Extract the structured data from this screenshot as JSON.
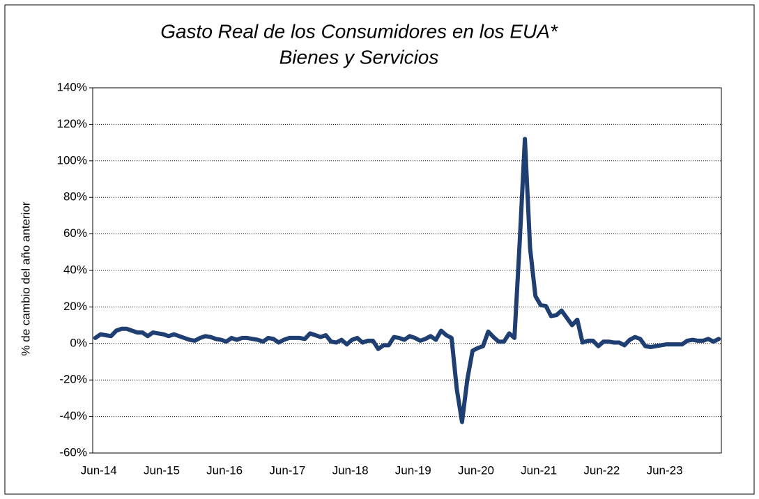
{
  "chart_data": {
    "type": "line",
    "title": "Gasto Real de los Consumidores en los EUA*",
    "subtitle": "Bienes y Servicios",
    "y_label": "% de cambio del año anterior",
    "categories": [
      "Jun-14",
      null,
      null,
      null,
      null,
      null,
      null,
      null,
      null,
      null,
      null,
      null,
      "Jun-15",
      null,
      null,
      null,
      null,
      null,
      null,
      null,
      null,
      null,
      null,
      null,
      "Jun-16",
      null,
      null,
      null,
      null,
      null,
      null,
      null,
      null,
      null,
      null,
      null,
      "Jun-17",
      null,
      null,
      null,
      null,
      null,
      null,
      null,
      null,
      null,
      null,
      null,
      "Jun-18",
      null,
      null,
      null,
      null,
      null,
      null,
      null,
      null,
      null,
      null,
      null,
      "Jun-19",
      null,
      null,
      null,
      null,
      null,
      null,
      null,
      null,
      null,
      null,
      null,
      "Jun-20",
      null,
      null,
      null,
      null,
      null,
      null,
      null,
      null,
      null,
      null,
      null,
      "Jun-21",
      null,
      null,
      null,
      null,
      null,
      null,
      null,
      null,
      null,
      null,
      null,
      "Jun-22",
      null,
      null,
      null,
      null,
      null,
      null,
      null,
      null,
      null,
      null,
      null,
      "Jun-23",
      null,
      null,
      null,
      null,
      null,
      null,
      null,
      null,
      null,
      null,
      null
    ],
    "series": [
      {
        "name": null,
        "color": "#1f3f73",
        "values": [
          3,
          5,
          4.5,
          4,
          7,
          8,
          8,
          7,
          6,
          6,
          4,
          6,
          5.5,
          5,
          4,
          5,
          4,
          3,
          2,
          1.5,
          3,
          4,
          3.5,
          2.5,
          2,
          1,
          3,
          2,
          3,
          3,
          2.5,
          2,
          1,
          3,
          2.5,
          0.5,
          2,
          3,
          3,
          3,
          2.5,
          5.5,
          4.5,
          3.5,
          4.5,
          1,
          0.5,
          2,
          -0.5,
          2,
          3,
          0.5,
          1.5,
          1.5,
          -3,
          -1,
          -1,
          3.5,
          3,
          2,
          4,
          3,
          1.5,
          2.5,
          4,
          2,
          7,
          4.5,
          3,
          -25,
          -43,
          -20,
          -4,
          -2.5,
          -1.5,
          6.5,
          3.5,
          1,
          1,
          5.5,
          3,
          55,
          112,
          52,
          26,
          21,
          20.5,
          15,
          15.5,
          18,
          14,
          10,
          13,
          0.5,
          1.5,
          1.5,
          -1.5,
          1,
          1,
          0.5,
          0.5,
          -1,
          2,
          3.5,
          2.5,
          -1.5,
          -2,
          -1.5,
          -1,
          -0.5,
          -0.5,
          -0.5,
          -0.5,
          1.5,
          2,
          1.5,
          1.5,
          2.5,
          1,
          2.5
        ]
      }
    ],
    "ylim": [
      -60,
      140
    ],
    "yticks": [
      {
        "value": -60,
        "label": "-60%"
      },
      {
        "value": -40,
        "label": "-40%"
      },
      {
        "value": -20,
        "label": "-20%"
      },
      {
        "value": 0,
        "label": "0%"
      },
      {
        "value": 20,
        "label": "20%"
      },
      {
        "value": 40,
        "label": "40%"
      },
      {
        "value": 60,
        "label": "60%"
      },
      {
        "value": 80,
        "label": "80%"
      },
      {
        "value": 100,
        "label": "100%"
      },
      {
        "value": 120,
        "label": "120%"
      },
      {
        "value": 140,
        "label": "140%"
      }
    ],
    "grid": true
  }
}
